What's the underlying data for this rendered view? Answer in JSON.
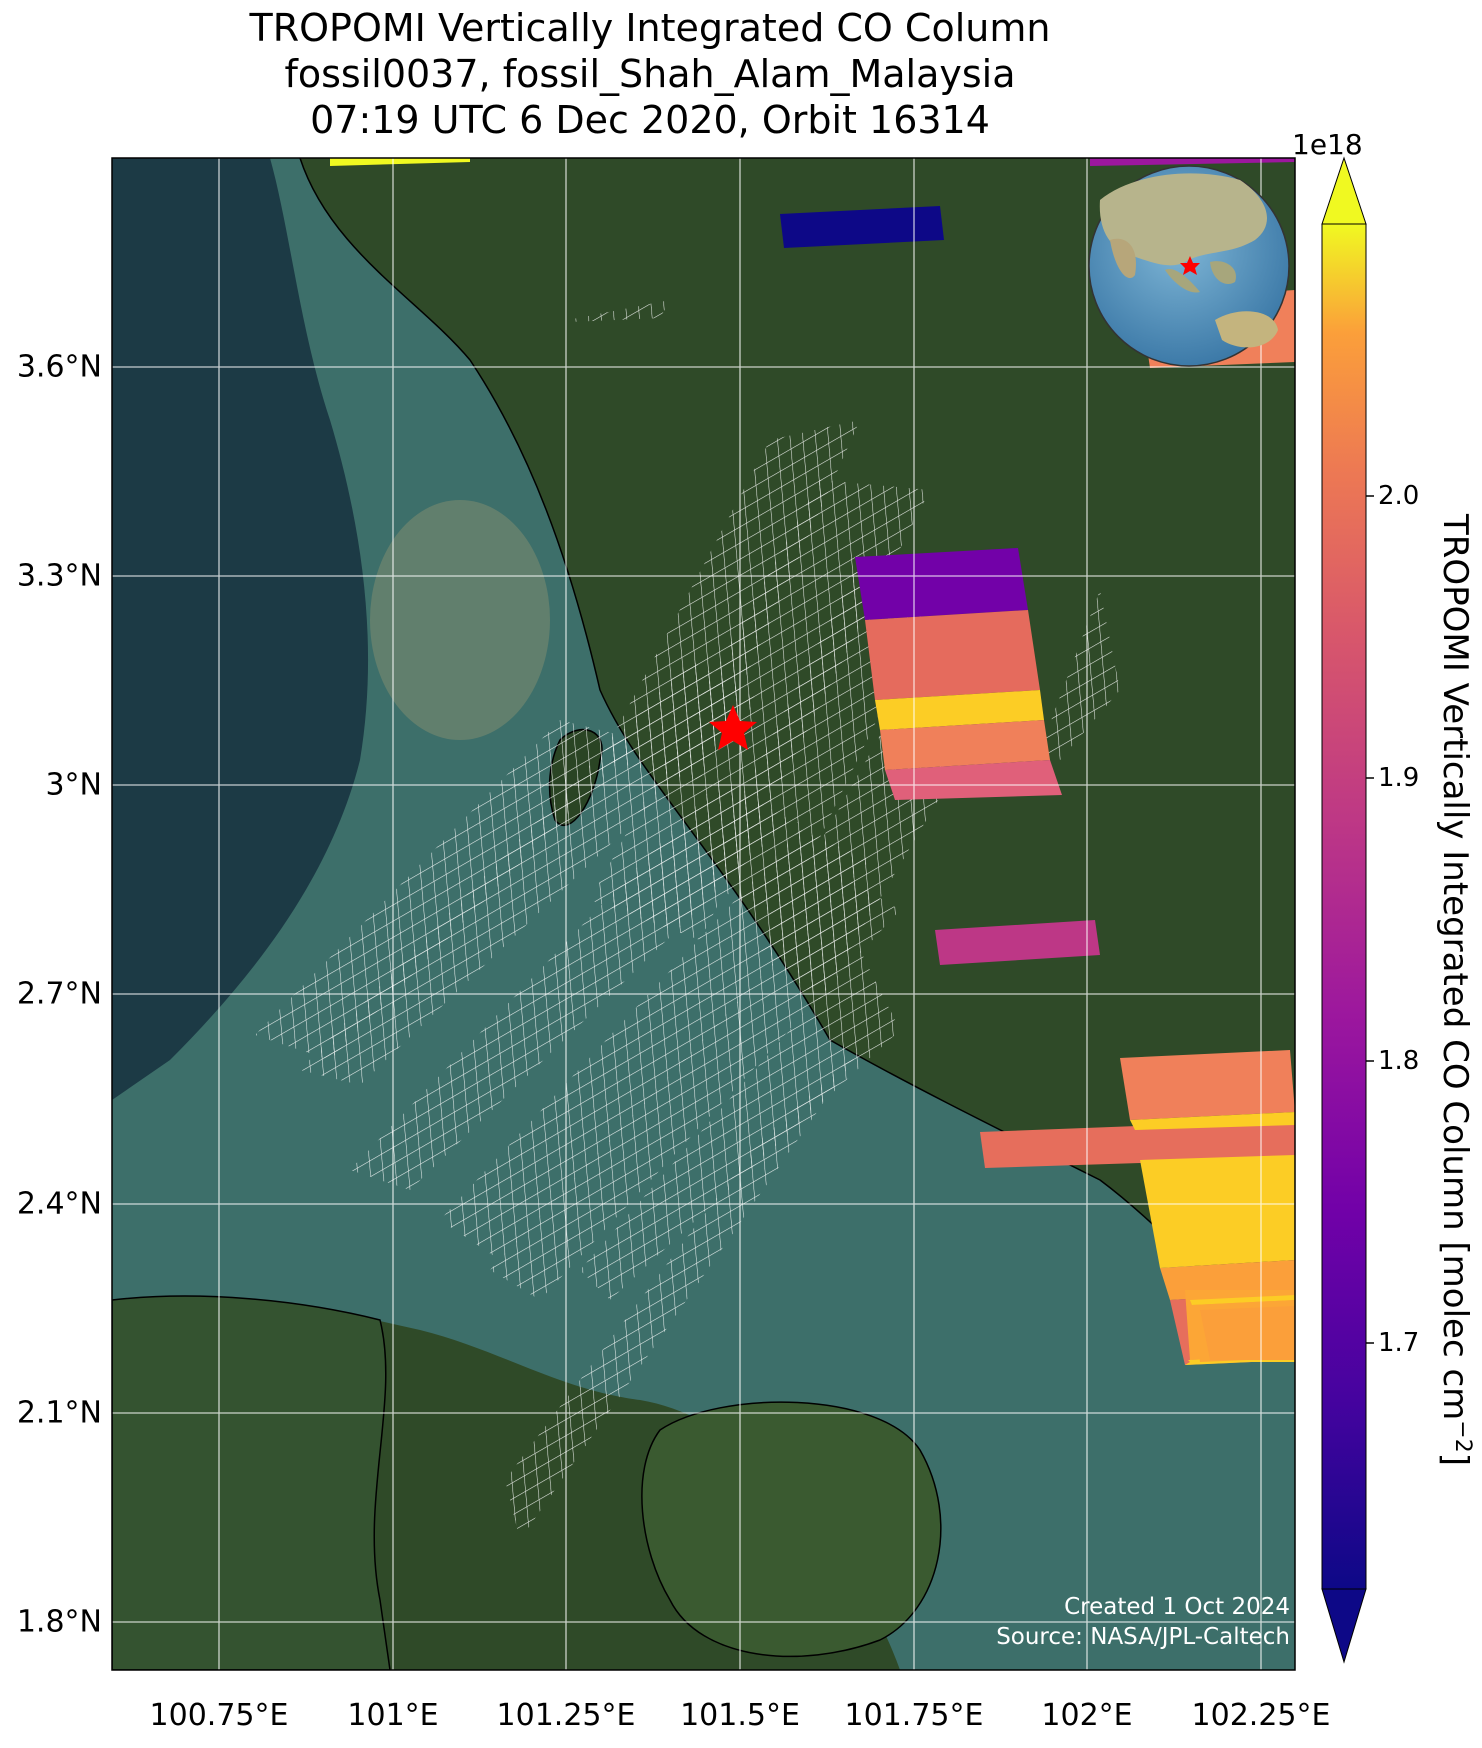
{
  "title": {
    "line1": "TROPOMI Vertically Integrated CO Column",
    "line2": "fossil0037, fossil_Shah_Alam_Malaysia",
    "line3": "07:19 UTC 6 Dec 2020, Orbit 16314"
  },
  "map": {
    "lon_ticks": [
      "100.75°E",
      "101°E",
      "101.25°E",
      "101.5°E",
      "101.75°E",
      "102°E",
      "102.25°E"
    ],
    "lat_ticks": [
      "3.6°N",
      "3.3°N",
      "3°N",
      "2.7°N",
      "2.4°N",
      "2.1°N",
      "1.8°N"
    ],
    "lon_values": [
      100.75,
      101.0,
      101.25,
      101.5,
      101.75,
      102.0,
      102.25
    ],
    "lat_values": [
      3.6,
      3.3,
      3.0,
      2.7,
      2.4,
      2.1,
      1.8
    ],
    "site_marker": "red-star",
    "site_lon": 101.5,
    "site_lat": 3.08
  },
  "colorbar": {
    "exponent": "1e18",
    "ticks": [
      "2.0",
      "1.9",
      "1.8",
      "1.7"
    ],
    "tick_values": [
      2.0,
      1.9,
      1.8,
      1.7
    ],
    "range": [
      1.62,
      2.08
    ],
    "label": "TROPOMI Vertically Integrated CO Column [molec cm",
    "label_sup": "−2",
    "label_end": "]",
    "colormap": "plasma"
  },
  "credits": {
    "created": "Created 1 Oct 2024",
    "source": "Source: NASA/JPL-Caltech"
  },
  "colors": {
    "water_dark": "#1c3a45",
    "water_teal": "#3d6f6a",
    "land_green": "#2f4a28",
    "grid_white": "#ffffff",
    "marker_red": "#ff0000"
  }
}
